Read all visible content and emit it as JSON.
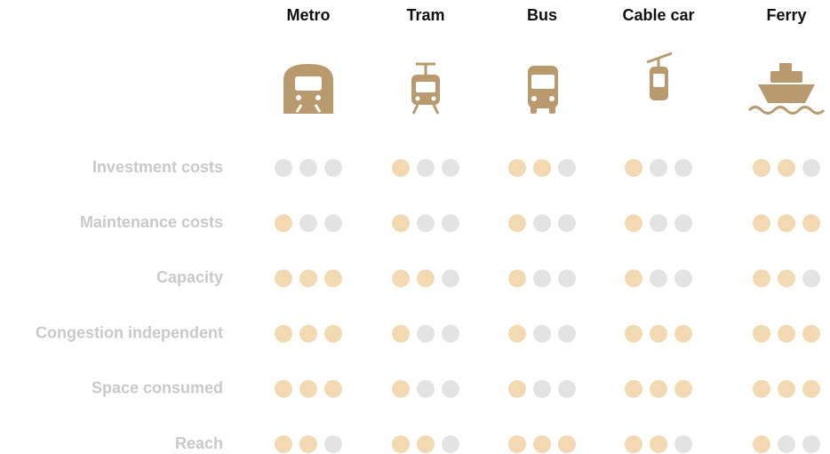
{
  "chart_data": {
    "type": "rating-dots",
    "categories": [
      "Investment costs",
      "Maintenance costs",
      "Capacity",
      "Congestion independent",
      "Space consumed",
      "Reach"
    ],
    "dots": 3,
    "color": "#f3d9b1",
    "empty_color": "#e3e3e3",
    "series": [
      {
        "name": "Metro",
        "values": [
          0,
          1,
          3,
          3,
          3,
          2
        ]
      },
      {
        "name": "Tram",
        "values": [
          1,
          1,
          2,
          1,
          1,
          2
        ]
      },
      {
        "name": "Bus",
        "values": [
          2,
          1,
          1,
          1,
          1,
          3
        ]
      },
      {
        "name": "Cable car",
        "values": [
          1,
          1,
          1,
          3,
          3,
          2
        ]
      },
      {
        "name": "Ferry",
        "values": [
          2,
          3,
          2,
          3,
          3,
          1
        ]
      }
    ]
  }
}
